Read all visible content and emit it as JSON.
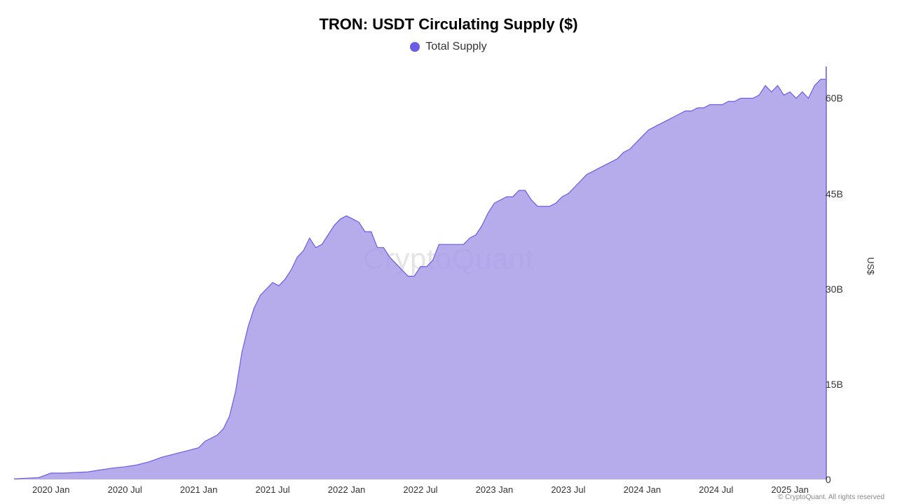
{
  "chart": {
    "type": "area",
    "title": "TRON: USDT Circulating Supply ($)",
    "title_fontsize": 22,
    "title_fontweight": 700,
    "legend": {
      "dot_color": "#6b5ce7",
      "label": "Total Supply",
      "label_fontsize": 16
    },
    "watermark": "CryptoQuant",
    "copyright": "© CryptoQuant. All rights reserved",
    "background_color": "#ffffff",
    "area_fill_color": "#a99ce8",
    "area_fill_opacity": 0.85,
    "line_color": "#6b5ce7",
    "line_width": 1.2,
    "y_axis": {
      "title": "US$",
      "position": "right",
      "ylim": [
        0,
        65
      ],
      "ticks": [
        0,
        15,
        30,
        45,
        60
      ],
      "tick_labels": [
        "0",
        "15B",
        "30B",
        "45B",
        "60B"
      ],
      "tick_fontsize": 14,
      "tick_color": "#333333"
    },
    "x_axis": {
      "xlim": [
        0,
        132
      ],
      "ticks": [
        6,
        18,
        30,
        42,
        54,
        66,
        78,
        90,
        102,
        114,
        126
      ],
      "tick_labels": [
        "2020 Jan",
        "2020 Jul",
        "2021 Jan",
        "2021 Jul",
        "2022 Jan",
        "2022 Jul",
        "2023 Jan",
        "2023 Jul",
        "2024 Jan",
        "2024 Jul",
        "2025 Jan"
      ],
      "tick_fontsize": 13,
      "tick_color": "#333333"
    },
    "series": {
      "name": "Total Supply",
      "x": [
        0,
        2,
        4,
        6,
        8,
        10,
        12,
        14,
        16,
        18,
        20,
        22,
        24,
        26,
        28,
        30,
        31,
        32,
        33,
        34,
        35,
        36,
        37,
        38,
        39,
        40,
        41,
        42,
        43,
        44,
        45,
        46,
        47,
        48,
        49,
        50,
        51,
        52,
        53,
        54,
        55,
        56,
        57,
        58,
        59,
        60,
        61,
        62,
        63,
        64,
        65,
        66,
        67,
        68,
        69,
        70,
        71,
        72,
        73,
        74,
        75,
        76,
        77,
        78,
        79,
        80,
        81,
        82,
        83,
        84,
        85,
        86,
        87,
        88,
        89,
        90,
        91,
        92,
        93,
        94,
        95,
        96,
        97,
        98,
        99,
        100,
        101,
        102,
        103,
        104,
        105,
        106,
        107,
        108,
        109,
        110,
        111,
        112,
        113,
        114,
        115,
        116,
        117,
        118,
        119,
        120,
        121,
        122,
        123,
        124,
        125,
        126,
        127,
        128,
        129,
        130,
        131,
        132
      ],
      "y": [
        0.1,
        0.2,
        0.3,
        1.0,
        1.0,
        1.1,
        1.2,
        1.5,
        1.8,
        2.0,
        2.3,
        2.8,
        3.5,
        4.0,
        4.5,
        5.0,
        6.0,
        6.5,
        7.0,
        8.0,
        10.0,
        14.0,
        20.0,
        24.0,
        27.0,
        29.0,
        30.0,
        31.0,
        30.5,
        31.5,
        33.0,
        35.0,
        36.0,
        38.0,
        36.5,
        37.0,
        38.5,
        40.0,
        41.0,
        41.5,
        41.0,
        40.5,
        39.0,
        39.0,
        36.5,
        36.5,
        35.0,
        34.0,
        33.0,
        32.0,
        32.0,
        33.5,
        33.5,
        34.5,
        37.0,
        37.0,
        37.0,
        37.0,
        37.0,
        38.0,
        38.5,
        40.0,
        42.0,
        43.5,
        44.0,
        44.5,
        44.5,
        45.5,
        45.5,
        44.0,
        43.0,
        43.0,
        43.0,
        43.5,
        44.5,
        45.0,
        46.0,
        47.0,
        48.0,
        48.5,
        49.0,
        49.5,
        50.0,
        50.5,
        51.5,
        52.0,
        53.0,
        54.0,
        55.0,
        55.5,
        56.0,
        56.5,
        57.0,
        57.5,
        58.0,
        58.0,
        58.5,
        58.5,
        59.0,
        59.0,
        59.0,
        59.5,
        59.5,
        60.0,
        60.0,
        60.0,
        60.5,
        62.0,
        61.0,
        62.0,
        60.5,
        61.0,
        60.0,
        61.0,
        60.0,
        62.0,
        63.0,
        63.0
      ]
    }
  }
}
